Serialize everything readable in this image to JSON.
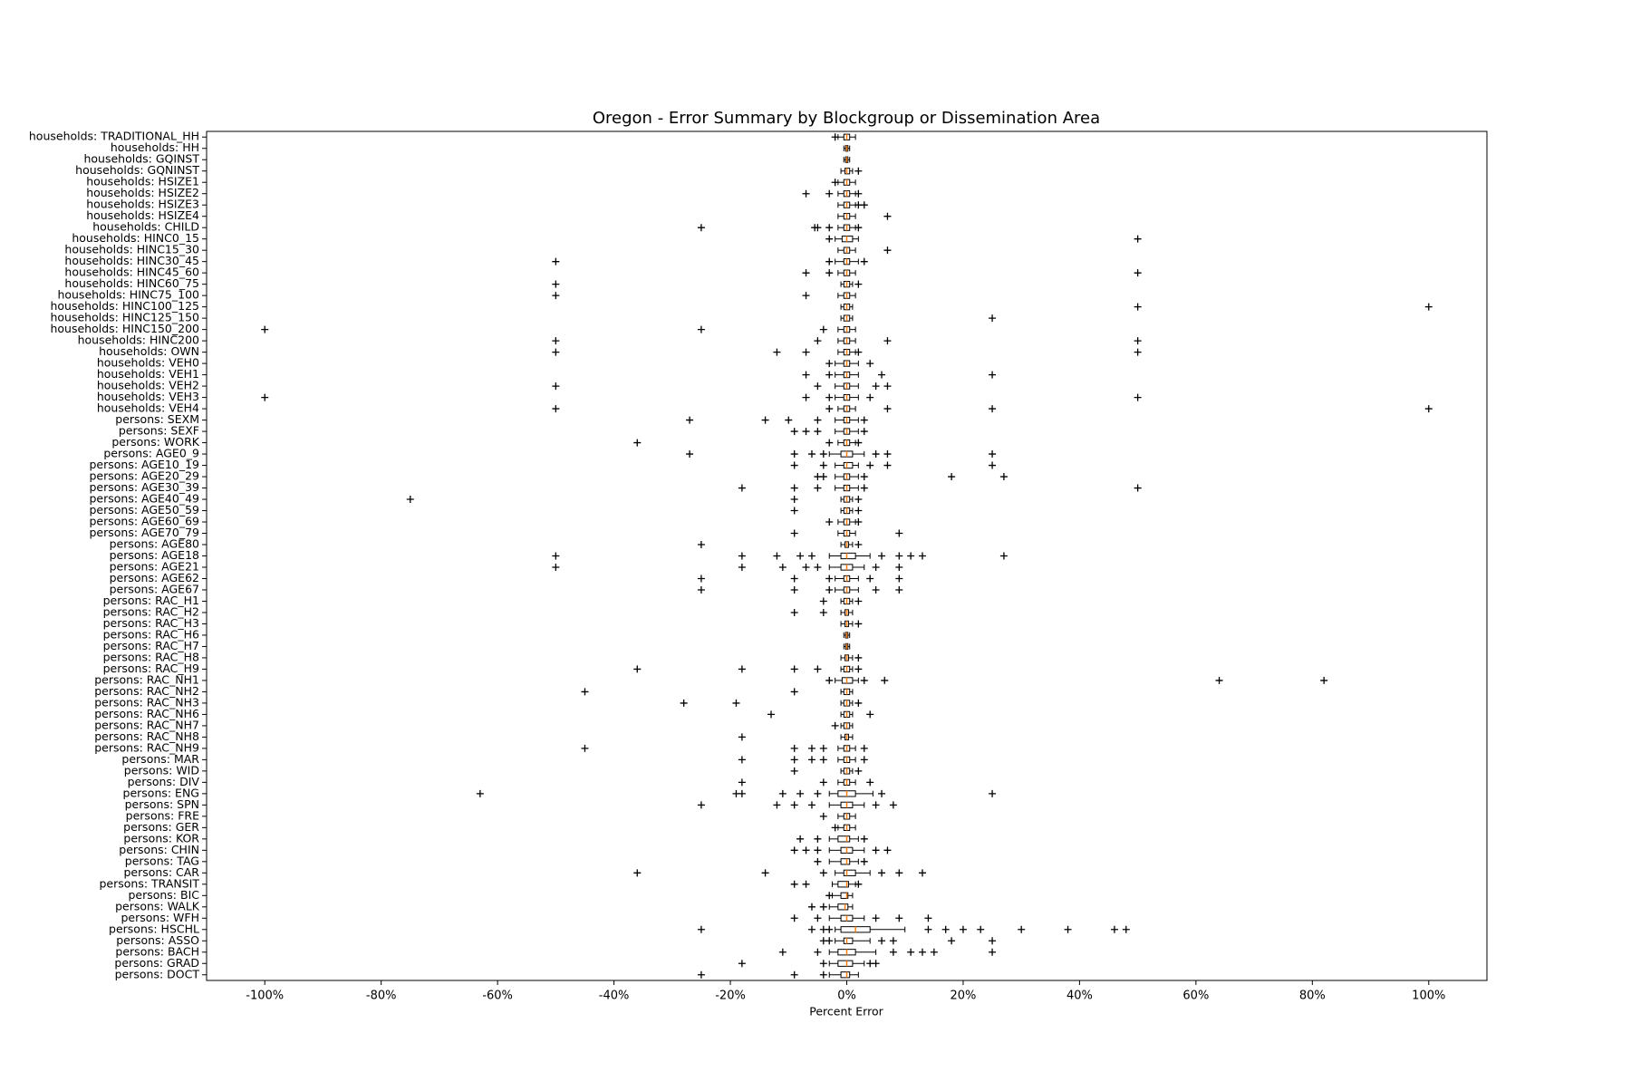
{
  "chart_data": {
    "type": "boxplot",
    "orientation": "horizontal",
    "title": "Oregon - Error Summary by Blockgroup or Dissemination Area",
    "x_label": "Percent Error",
    "xlim": [
      -110,
      110
    ],
    "xticks": [
      {
        "value": -100,
        "label": "-100%"
      },
      {
        "value": -80,
        "label": "-80%"
      },
      {
        "value": -60,
        "label": "-60%"
      },
      {
        "value": -40,
        "label": "-40%"
      },
      {
        "value": -20,
        "label": "-20%"
      },
      {
        "value": 0,
        "label": "0%"
      },
      {
        "value": 20,
        "label": "20%"
      },
      {
        "value": 40,
        "label": "40%"
      },
      {
        "value": 60,
        "label": "60%"
      },
      {
        "value": 80,
        "label": "80%"
      },
      {
        "value": 100,
        "label": "100%"
      }
    ],
    "box_color": "#000000",
    "median_color": "#ff7f0e",
    "categories": [
      "households: TRADITIONAL_HH",
      "households: HH",
      "households: GQINST",
      "households: GQNINST",
      "households: HSIZE1",
      "households: HSIZE2",
      "households: HSIZE3",
      "households: HSIZE4",
      "households: CHILD",
      "households: HINC0_15",
      "households: HINC15_30",
      "households: HINC30_45",
      "households: HINC45_60",
      "households: HINC60_75",
      "households: HINC75_100",
      "households: HINC100_125",
      "households: HINC125_150",
      "households: HINC150_200",
      "households: HINC200",
      "households: OWN",
      "households: VEH0",
      "households: VEH1",
      "households: VEH2",
      "households: VEH3",
      "households: VEH4",
      "persons: SEXM",
      "persons: SEXF",
      "persons: WORK",
      "persons: AGE0_9",
      "persons: AGE10_19",
      "persons: AGE20_29",
      "persons: AGE30_39",
      "persons: AGE40_49",
      "persons: AGE50_59",
      "persons: AGE60_69",
      "persons: AGE70_79",
      "persons: AGE80",
      "persons: AGE18",
      "persons: AGE21",
      "persons: AGE62",
      "persons: AGE67",
      "persons: RAC_H1",
      "persons: RAC_H2",
      "persons: RAC_H3",
      "persons: RAC_H6",
      "persons: RAC_H7",
      "persons: RAC_H8",
      "persons: RAC_H9",
      "persons: RAC_NH1",
      "persons: RAC_NH2",
      "persons: RAC_NH3",
      "persons: RAC_NH6",
      "persons: RAC_NH7",
      "persons: RAC_NH8",
      "persons: RAC_NH9",
      "persons: MAR",
      "persons: WID",
      "persons: DIV",
      "persons: ENG",
      "persons: SPN",
      "persons: FRE",
      "persons: GER",
      "persons: KOR",
      "persons: CHIN",
      "persons: TAG",
      "persons: CAR",
      "persons: TRANSIT",
      "persons: BIC",
      "persons: WALK",
      "persons: WFH",
      "persons: HSCHL",
      "persons: ASSO",
      "persons: BACH",
      "persons: GRAD",
      "persons: DOCT"
    ],
    "boxes": [
      {
        "low": -1.5,
        "q1": -0.5,
        "median": 0,
        "q3": 0.5,
        "high": 1.5,
        "fliers": [
          -2
        ]
      },
      {
        "low": -0.5,
        "q1": -0.2,
        "median": 0,
        "q3": 0.2,
        "high": 0.5,
        "fliers": []
      },
      {
        "low": -0.5,
        "q1": -0.2,
        "median": 0,
        "q3": 0.2,
        "high": 0.5,
        "fliers": []
      },
      {
        "low": -1,
        "q1": -0.3,
        "median": 0,
        "q3": 0.5,
        "high": 1,
        "fliers": [
          2
        ]
      },
      {
        "low": -1.5,
        "q1": -0.5,
        "median": 0,
        "q3": 0.5,
        "high": 1.5,
        "fliers": [
          -2
        ]
      },
      {
        "low": -1.5,
        "q1": -0.5,
        "median": 0,
        "q3": 0.5,
        "high": 1.5,
        "fliers": [
          -7,
          -3,
          2
        ]
      },
      {
        "low": -1.5,
        "q1": -0.5,
        "median": 0,
        "q3": 0.5,
        "high": 1.5,
        "fliers": [
          2,
          3
        ]
      },
      {
        "low": -1.5,
        "q1": -0.5,
        "median": 0,
        "q3": 0.5,
        "high": 1.5,
        "fliers": [
          7
        ]
      },
      {
        "low": -1.5,
        "q1": -0.5,
        "median": 0,
        "q3": 0.5,
        "high": 1.5,
        "fliers": [
          -25,
          -5.5,
          -5,
          -3,
          2
        ]
      },
      {
        "low": -2,
        "q1": -0.8,
        "median": 0,
        "q3": 1,
        "high": 2,
        "fliers": [
          -3,
          50
        ]
      },
      {
        "low": -1.5,
        "q1": -0.5,
        "median": 0,
        "q3": 0.5,
        "high": 1.5,
        "fliers": [
          7
        ]
      },
      {
        "low": -2,
        "q1": -0.5,
        "median": 0,
        "q3": 0.5,
        "high": 2,
        "fliers": [
          -50,
          -3,
          3
        ]
      },
      {
        "low": -1.5,
        "q1": -0.5,
        "median": 0,
        "q3": 0.5,
        "high": 1.5,
        "fliers": [
          -7,
          -3,
          50
        ]
      },
      {
        "low": -1,
        "q1": -0.5,
        "median": 0,
        "q3": 0.5,
        "high": 1,
        "fliers": [
          -50,
          2
        ]
      },
      {
        "low": -1.5,
        "q1": -0.5,
        "median": 0,
        "q3": 0.5,
        "high": 1.5,
        "fliers": [
          -50,
          -7
        ]
      },
      {
        "low": -1,
        "q1": -0.5,
        "median": 0,
        "q3": 0.5,
        "high": 1,
        "fliers": [
          50,
          100
        ]
      },
      {
        "low": -1,
        "q1": -0.5,
        "median": 0,
        "q3": 0.5,
        "high": 1,
        "fliers": [
          25
        ]
      },
      {
        "low": -1.5,
        "q1": -0.5,
        "median": 0,
        "q3": 0.5,
        "high": 1.5,
        "fliers": [
          -100,
          -25,
          -4
        ]
      },
      {
        "low": -1.5,
        "q1": -0.5,
        "median": 0,
        "q3": 0.5,
        "high": 1.5,
        "fliers": [
          -50,
          -5,
          7,
          50
        ]
      },
      {
        "low": -1.5,
        "q1": -0.5,
        "median": 0,
        "q3": 0.5,
        "high": 1.5,
        "fliers": [
          -50,
          -12,
          -7,
          2,
          50
        ]
      },
      {
        "low": -2,
        "q1": -0.5,
        "median": 0,
        "q3": 0.5,
        "high": 2,
        "fliers": [
          -3,
          4
        ]
      },
      {
        "low": -2,
        "q1": -0.5,
        "median": 0,
        "q3": 0.5,
        "high": 2,
        "fliers": [
          -7,
          -3,
          6,
          25
        ]
      },
      {
        "low": -2,
        "q1": -0.5,
        "median": 0,
        "q3": 0.5,
        "high": 2,
        "fliers": [
          -50,
          -5,
          5,
          7
        ]
      },
      {
        "low": -2,
        "q1": -0.5,
        "median": 0,
        "q3": 0.5,
        "high": 2,
        "fliers": [
          -100,
          -7,
          -3,
          4,
          50
        ]
      },
      {
        "low": -1.5,
        "q1": -0.5,
        "median": 0,
        "q3": 0.5,
        "high": 1.5,
        "fliers": [
          -50,
          -3,
          7,
          25,
          100
        ]
      },
      {
        "low": -2,
        "q1": -0.5,
        "median": 0,
        "q3": 0.5,
        "high": 2,
        "fliers": [
          -27,
          -14,
          -10,
          -5,
          3
        ]
      },
      {
        "low": -2,
        "q1": -0.5,
        "median": 0,
        "q3": 0.5,
        "high": 2,
        "fliers": [
          -9,
          -7,
          -5,
          3
        ]
      },
      {
        "low": -1.5,
        "q1": -0.5,
        "median": 0,
        "q3": 0.5,
        "high": 1.5,
        "fliers": [
          -36,
          -3,
          2
        ]
      },
      {
        "low": -3,
        "q1": -1,
        "median": 0,
        "q3": 1,
        "high": 3,
        "fliers": [
          -27,
          -9,
          -6,
          -4,
          5,
          7,
          25
        ]
      },
      {
        "low": -2,
        "q1": -0.5,
        "median": 0,
        "q3": 1,
        "high": 2,
        "fliers": [
          -9,
          -4,
          4,
          7,
          25
        ]
      },
      {
        "low": -2,
        "q1": -0.5,
        "median": 0,
        "q3": 0.5,
        "high": 2,
        "fliers": [
          -5,
          -4,
          3,
          18,
          27
        ]
      },
      {
        "low": -2,
        "q1": -0.5,
        "median": 0,
        "q3": 0.5,
        "high": 2,
        "fliers": [
          -18,
          -9,
          -5,
          3,
          50
        ]
      },
      {
        "low": -1,
        "q1": -0.5,
        "median": 0,
        "q3": 0.5,
        "high": 1,
        "fliers": [
          -75,
          -9,
          2
        ]
      },
      {
        "low": -1,
        "q1": -0.5,
        "median": 0,
        "q3": 0.5,
        "high": 1,
        "fliers": [
          -9,
          2
        ]
      },
      {
        "low": -1.5,
        "q1": -0.5,
        "median": 0,
        "q3": 0.5,
        "high": 1.5,
        "fliers": [
          -3,
          2
        ]
      },
      {
        "low": -1.5,
        "q1": -0.5,
        "median": 0,
        "q3": 0.5,
        "high": 1.5,
        "fliers": [
          -9,
          9
        ]
      },
      {
        "low": -1,
        "q1": -0.3,
        "median": 0,
        "q3": 0.3,
        "high": 1,
        "fliers": [
          -25,
          2
        ]
      },
      {
        "low": -3,
        "q1": -1,
        "median": 0,
        "q3": 1.5,
        "high": 4,
        "fliers": [
          -50,
          -18,
          -12,
          -8,
          -6,
          6,
          9,
          11,
          13,
          27
        ]
      },
      {
        "low": -3,
        "q1": -1,
        "median": 0,
        "q3": 1,
        "high": 3,
        "fliers": [
          -50,
          -18,
          -11,
          -7,
          -5,
          5,
          9
        ]
      },
      {
        "low": -2,
        "q1": -0.5,
        "median": 0,
        "q3": 0.5,
        "high": 2,
        "fliers": [
          -25,
          -9,
          -3,
          4,
          9
        ]
      },
      {
        "low": -2,
        "q1": -0.5,
        "median": 0,
        "q3": 0.5,
        "high": 2,
        "fliers": [
          -25,
          -9,
          -3,
          5,
          9
        ]
      },
      {
        "low": -1,
        "q1": -0.5,
        "median": 0,
        "q3": 0.5,
        "high": 1,
        "fliers": [
          -4,
          2
        ]
      },
      {
        "low": -1,
        "q1": -0.3,
        "median": 0,
        "q3": 0.3,
        "high": 1,
        "fliers": [
          -9,
          -4
        ]
      },
      {
        "low": -1,
        "q1": -0.3,
        "median": 0,
        "q3": 0.3,
        "high": 1,
        "fliers": [
          2
        ]
      },
      {
        "low": -0.5,
        "q1": -0.2,
        "median": 0,
        "q3": 0.2,
        "high": 0.5,
        "fliers": []
      },
      {
        "low": -0.5,
        "q1": -0.2,
        "median": 0,
        "q3": 0.2,
        "high": 0.5,
        "fliers": []
      },
      {
        "low": -1,
        "q1": -0.3,
        "median": 0,
        "q3": 0.3,
        "high": 1,
        "fliers": [
          2
        ]
      },
      {
        "low": -1,
        "q1": -0.5,
        "median": 0,
        "q3": 0.5,
        "high": 1,
        "fliers": [
          -36,
          -18,
          -9,
          -5,
          2
        ]
      },
      {
        "low": -2,
        "q1": -0.8,
        "median": 0,
        "q3": 1,
        "high": 2,
        "fliers": [
          -3,
          3,
          6.5,
          64,
          82
        ]
      },
      {
        "low": -1,
        "q1": -0.5,
        "median": 0,
        "q3": 0.5,
        "high": 1,
        "fliers": [
          -45,
          -9
        ]
      },
      {
        "low": -1,
        "q1": -0.5,
        "median": 0,
        "q3": 0.5,
        "high": 1,
        "fliers": [
          -28,
          -19,
          2
        ]
      },
      {
        "low": -1,
        "q1": -0.5,
        "median": 0,
        "q3": 0.5,
        "high": 1,
        "fliers": [
          -13,
          4
        ]
      },
      {
        "low": -1,
        "q1": -0.5,
        "median": 0,
        "q3": 0.5,
        "high": 1,
        "fliers": [
          -2
        ]
      },
      {
        "low": -1,
        "q1": -0.3,
        "median": 0,
        "q3": 0.3,
        "high": 1,
        "fliers": [
          -18
        ]
      },
      {
        "low": -1.5,
        "q1": -0.5,
        "median": 0,
        "q3": 0.5,
        "high": 1.5,
        "fliers": [
          -45,
          -9,
          -6,
          -4,
          3
        ]
      },
      {
        "low": -1.5,
        "q1": -0.5,
        "median": 0,
        "q3": 0.5,
        "high": 1.5,
        "fliers": [
          -18,
          -9,
          -6,
          -4,
          3
        ]
      },
      {
        "low": -1,
        "q1": -0.5,
        "median": 0,
        "q3": 0.5,
        "high": 1,
        "fliers": [
          -9,
          2
        ]
      },
      {
        "low": -1.5,
        "q1": -0.5,
        "median": 0,
        "q3": 0.5,
        "high": 1.5,
        "fliers": [
          -18,
          -4,
          4
        ]
      },
      {
        "low": -3,
        "q1": -1.5,
        "median": 0,
        "q3": 1.5,
        "high": 4.5,
        "fliers": [
          -63,
          -19,
          -18,
          -11,
          -8,
          -5,
          6,
          25
        ]
      },
      {
        "low": -3,
        "q1": -1,
        "median": 0,
        "q3": 1,
        "high": 3,
        "fliers": [
          -25,
          -12,
          -9,
          -6,
          5,
          8
        ]
      },
      {
        "low": -1.5,
        "q1": -0.5,
        "median": 0,
        "q3": 0.5,
        "high": 1.5,
        "fliers": [
          -4
        ]
      },
      {
        "low": -1.5,
        "q1": -0.5,
        "median": 0,
        "q3": 0.5,
        "high": 1.5,
        "fliers": [
          -2
        ]
      },
      {
        "low": -3,
        "q1": -1.5,
        "median": 0,
        "q3": 0.5,
        "high": 2,
        "fliers": [
          -8,
          -5,
          3
        ]
      },
      {
        "low": -3,
        "q1": -1,
        "median": 0,
        "q3": 1,
        "high": 3,
        "fliers": [
          -9,
          -7,
          -5,
          5,
          7
        ]
      },
      {
        "low": -3,
        "q1": -1,
        "median": 0,
        "q3": 0.5,
        "high": 2,
        "fliers": [
          -5,
          3
        ]
      },
      {
        "low": -2,
        "q1": -0.5,
        "median": 0,
        "q3": 1.5,
        "high": 4,
        "fliers": [
          -36,
          -14,
          -4,
          6,
          9,
          13
        ]
      },
      {
        "low": -2.5,
        "q1": -1.5,
        "median": 0,
        "q3": 0.3,
        "high": 1.5,
        "fliers": [
          -9,
          -7,
          2
        ]
      },
      {
        "low": -2.5,
        "q1": -1,
        "median": 0,
        "q3": 0.2,
        "high": 1,
        "fliers": [
          -3
        ]
      },
      {
        "low": -3,
        "q1": -1.5,
        "median": -0.3,
        "q3": 0.2,
        "high": 1,
        "fliers": [
          -6,
          -4
        ]
      },
      {
        "low": -3,
        "q1": -1,
        "median": 0,
        "q3": 1,
        "high": 3,
        "fliers": [
          -9,
          -5,
          5,
          9,
          14
        ]
      },
      {
        "low": -2,
        "q1": -1,
        "median": 1.5,
        "q3": 4,
        "high": 10,
        "fliers": [
          -25,
          -6,
          -4,
          -3,
          14,
          17,
          20,
          23,
          30,
          38,
          46,
          48
        ]
      },
      {
        "low": -2,
        "q1": -0.5,
        "median": 0,
        "q3": 1,
        "high": 4,
        "fliers": [
          -4,
          -3,
          6,
          8,
          18,
          25
        ]
      },
      {
        "low": -3,
        "q1": -1.5,
        "median": 0,
        "q3": 1.5,
        "high": 5,
        "fliers": [
          -11,
          -5,
          8,
          11,
          13,
          15,
          25
        ]
      },
      {
        "low": -3,
        "q1": -1.5,
        "median": 0,
        "q3": 1,
        "high": 3,
        "fliers": [
          -18,
          -4,
          4,
          5
        ]
      },
      {
        "low": -3,
        "q1": -1,
        "median": 0,
        "q3": 0.5,
        "high": 2,
        "fliers": [
          -25,
          -9,
          -4
        ]
      }
    ]
  }
}
